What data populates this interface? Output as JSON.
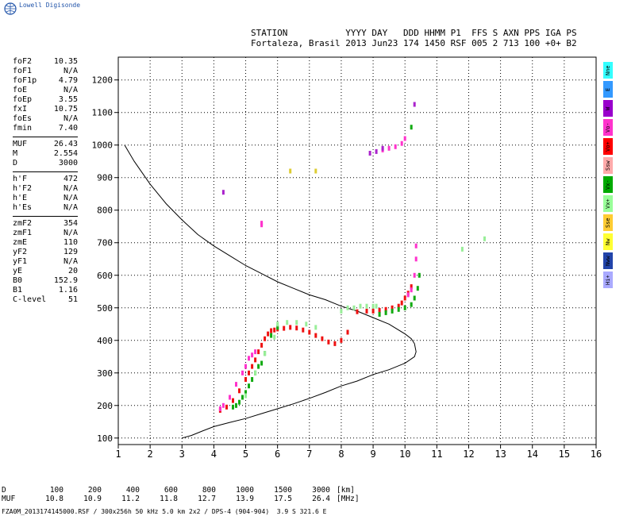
{
  "app": {
    "brand": "Lowell Digisonde"
  },
  "header": {
    "line1": "STATION           YYYY DAY   DDD HHMM P1  FFS S AXN PPS IGA PS",
    "line2": "Fortaleza, Brasil 2013 Jun23 174 1450 RSF 005 2 713 100 +0+ B2"
  },
  "params": [
    [
      {
        "label": "foF2",
        "value": "10.35"
      },
      {
        "label": "foF1",
        "value": "N/A"
      },
      {
        "label": "foF1p",
        "value": "4.79"
      },
      {
        "label": "foE",
        "value": "N/A"
      },
      {
        "label": "foEp",
        "value": "3.55"
      },
      {
        "label": "fxI",
        "value": "10.75"
      },
      {
        "label": "foEs",
        "value": "N/A"
      },
      {
        "label": "fmin",
        "value": "7.40"
      }
    ],
    [
      {
        "label": "MUF",
        "value": "26.43"
      },
      {
        "label": "M",
        "value": "2.554"
      },
      {
        "label": "D",
        "value": "3000"
      }
    ],
    [
      {
        "label": "h'F",
        "value": "472"
      },
      {
        "label": "h'F2",
        "value": "N/A"
      },
      {
        "label": "h'E",
        "value": "N/A"
      },
      {
        "label": "h'Es",
        "value": "N/A"
      }
    ],
    [
      {
        "label": "zmF2",
        "value": "354"
      },
      {
        "label": "zmF1",
        "value": "N/A"
      },
      {
        "label": "zmE",
        "value": "110"
      },
      {
        "label": "yF2",
        "value": "129"
      },
      {
        "label": "yF1",
        "value": "N/A"
      },
      {
        "label": "yE",
        "value": "20"
      },
      {
        "label": "B0",
        "value": "152.9"
      },
      {
        "label": "B1",
        "value": "1.16"
      },
      {
        "label": "C-level",
        "value": "51"
      }
    ]
  ],
  "legend": [
    {
      "label": "Nne",
      "color": "#33ffff"
    },
    {
      "label": "E",
      "color": "#3399ff"
    },
    {
      "label": "W",
      "color": "#9900cc"
    },
    {
      "label": "Vo-",
      "color": "#ff33cc"
    },
    {
      "label": "Vo+",
      "color": "#ff0000"
    },
    {
      "label": "Ssw",
      "color": "#ffaaaa"
    },
    {
      "label": "Vx-",
      "color": "#00aa00"
    },
    {
      "label": "Vx+",
      "color": "#99ff99"
    },
    {
      "label": "Sse",
      "color": "#ffcc33"
    },
    {
      "label": "Nw",
      "color": "#ffff33"
    },
    {
      "label": "Nww",
      "color": "#2244aa"
    },
    {
      "label": "Hi+",
      "color": "#aaaaff"
    }
  ],
  "muf_table": {
    "d_label": "D",
    "muf_label": "MUF",
    "d_values": [
      "100",
      "200",
      "400",
      "600",
      "800",
      "1000",
      "1500",
      "3000"
    ],
    "muf_values": [
      "10.8",
      "10.9",
      "11.2",
      "11.8",
      "12.7",
      "13.9",
      "17.5",
      "26.4"
    ],
    "d_unit": "[km]",
    "muf_unit": "[MHz]"
  },
  "footer": "FZA0M_2013174145000.RSF / 300x256h 50 kHz 5.0 km 2x2 / DPS-4 (904-904)  3.9 S 321.6 E",
  "chart_data": {
    "type": "scatter",
    "title": "",
    "xlabel": "",
    "ylabel": "",
    "xlim": [
      1,
      16
    ],
    "ylim": [
      80,
      1270
    ],
    "xticks": [
      1,
      2,
      3,
      4,
      5,
      6,
      7,
      8,
      9,
      10,
      11,
      12,
      13,
      14,
      15,
      16
    ],
    "yticks": [
      100,
      200,
      300,
      400,
      500,
      600,
      700,
      800,
      900,
      1000,
      1100,
      1200
    ],
    "grid": true,
    "profile_curve": {
      "name": "",
      "color": "#000000",
      "x": [
        1.2,
        1.5,
        2.0,
        2.5,
        3.0,
        3.5,
        4.0,
        4.5,
        5.0,
        5.5,
        6.0,
        6.5,
        7.0,
        7.5,
        8.0,
        8.5,
        9.0,
        9.5,
        10.0,
        10.2,
        10.3,
        10.35,
        10.3,
        10.0,
        9.5,
        9.0,
        8.5,
        8.0,
        7.5,
        7.0,
        6.5,
        6.0,
        5.5,
        5.0,
        4.5,
        4.0,
        3.6,
        3.3,
        3.0
      ],
      "y": [
        1000,
        950,
        880,
        820,
        770,
        725,
        690,
        660,
        630,
        605,
        580,
        560,
        540,
        525,
        505,
        490,
        470,
        450,
        420,
        405,
        390,
        365,
        350,
        330,
        310,
        295,
        275,
        260,
        240,
        222,
        205,
        190,
        175,
        160,
        148,
        135,
        120,
        108,
        100
      ]
    },
    "series": [
      {
        "name": "Vo+",
        "color": "#ee1111",
        "x": [
          4.2,
          4.4,
          4.6,
          4.8,
          5.0,
          5.1,
          5.2,
          5.3,
          5.4,
          5.5,
          5.6,
          5.7,
          5.8,
          5.9,
          6.0,
          6.2,
          6.4,
          6.6,
          6.8,
          7.0,
          7.2,
          7.4,
          7.6,
          7.8,
          8.0,
          8.2,
          8.5,
          8.8,
          9.0,
          9.2,
          9.4,
          9.6,
          9.8,
          9.9,
          10.0,
          10.1,
          10.2
        ],
        "y": [
          185,
          195,
          215,
          245,
          280,
          300,
          320,
          340,
          365,
          385,
          405,
          420,
          430,
          432,
          435,
          437,
          440,
          438,
          432,
          425,
          415,
          405,
          395,
          390,
          400,
          425,
          488,
          490,
          490,
          492,
          495,
          500,
          505,
          515,
          530,
          545,
          565
        ]
      },
      {
        "name": "Vo-",
        "color": "#ff33cc",
        "x": [
          4.2,
          4.3,
          4.5,
          4.7,
          4.9,
          5.0,
          5.1,
          5.2,
          5.3,
          5.5,
          5.5,
          9.3,
          9.5,
          9.7,
          9.9,
          10.0,
          10.1,
          10.2,
          10.3,
          10.35,
          10.35
        ],
        "y": [
          190,
          200,
          225,
          265,
          300,
          320,
          345,
          355,
          365,
          760,
          755,
          985,
          990,
          995,
          1005,
          1020,
          540,
          555,
          600,
          650,
          690
        ]
      },
      {
        "name": "Vx-",
        "color": "#11aa11",
        "x": [
          4.6,
          4.7,
          4.8,
          4.9,
          5.0,
          5.1,
          5.2,
          5.3,
          5.4,
          5.5,
          5.6,
          5.8,
          6.0,
          9.2,
          9.4,
          9.6,
          9.8,
          10.0,
          10.2,
          10.3,
          10.4,
          10.45,
          10.2
        ],
        "y": [
          195,
          200,
          210,
          225,
          240,
          260,
          280,
          300,
          320,
          330,
          360,
          415,
          440,
          480,
          485,
          490,
          495,
          500,
          510,
          530,
          560,
          600,
          1055
        ]
      },
      {
        "name": "Vx+",
        "color": "#99ee99",
        "x": [
          5.0,
          5.3,
          5.6,
          5.9,
          6.0,
          6.3,
          6.6,
          6.9,
          7.2,
          8.0,
          8.2,
          8.4,
          8.6,
          8.8,
          9.0,
          9.1,
          11.8,
          12.5
        ],
        "y": [
          230,
          300,
          360,
          410,
          450,
          455,
          455,
          450,
          440,
          490,
          500,
          500,
          505,
          505,
          505,
          505,
          680,
          712
        ]
      },
      {
        "name": "W",
        "color": "#aa22cc",
        "x": [
          4.3,
          8.9,
          9.1,
          9.3,
          10.3
        ],
        "y": [
          855,
          975,
          980,
          990,
          1125
        ]
      },
      {
        "name": "Nw",
        "color": "#ddcc33",
        "x": [
          6.4,
          7.2
        ],
        "y": [
          920,
          920
        ]
      }
    ]
  }
}
